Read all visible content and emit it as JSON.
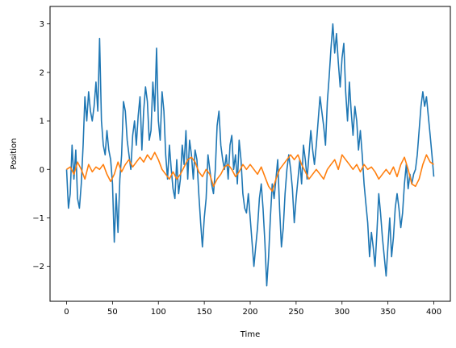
{
  "chart_data": {
    "type": "line",
    "title": "",
    "xlabel": "Time",
    "ylabel": "Position",
    "xlim": [
      -18,
      418
    ],
    "ylim": [
      -2.72,
      3.36
    ],
    "xticks": [
      0,
      50,
      100,
      150,
      200,
      250,
      300,
      350,
      400
    ],
    "yticks": [
      -2,
      -1,
      0,
      1,
      2,
      3
    ],
    "grid": false,
    "legend": "none",
    "series": [
      {
        "color": "#1f77b4",
        "points": [
          [
            0,
            0.0
          ],
          [
            2,
            -0.8
          ],
          [
            4,
            -0.5
          ],
          [
            6,
            0.5
          ],
          [
            8,
            -0.2
          ],
          [
            10,
            0.4
          ],
          [
            12,
            -0.6
          ],
          [
            14,
            -0.8
          ],
          [
            16,
            -0.3
          ],
          [
            18,
            0.5
          ],
          [
            20,
            1.5
          ],
          [
            22,
            1.0
          ],
          [
            24,
            1.6
          ],
          [
            26,
            1.2
          ],
          [
            28,
            1.0
          ],
          [
            30,
            1.3
          ],
          [
            32,
            1.8
          ],
          [
            34,
            1.2
          ],
          [
            36,
            2.7
          ],
          [
            38,
            1.0
          ],
          [
            40,
            0.5
          ],
          [
            42,
            0.3
          ],
          [
            44,
            0.8
          ],
          [
            46,
            0.4
          ],
          [
            48,
            0.2
          ],
          [
            50,
            -0.3
          ],
          [
            52,
            -1.5
          ],
          [
            54,
            -0.5
          ],
          [
            56,
            -1.3
          ],
          [
            58,
            -0.2
          ],
          [
            60,
            0.3
          ],
          [
            62,
            1.4
          ],
          [
            64,
            1.2
          ],
          [
            66,
            0.6
          ],
          [
            68,
            0.3
          ],
          [
            70,
            0.0
          ],
          [
            72,
            0.7
          ],
          [
            74,
            1.0
          ],
          [
            76,
            0.5
          ],
          [
            78,
            1.1
          ],
          [
            80,
            1.5
          ],
          [
            82,
            0.4
          ],
          [
            84,
            1.2
          ],
          [
            86,
            1.7
          ],
          [
            88,
            1.4
          ],
          [
            90,
            0.6
          ],
          [
            92,
            0.8
          ],
          [
            94,
            1.8
          ],
          [
            96,
            1.2
          ],
          [
            98,
            2.5
          ],
          [
            100,
            1.0
          ],
          [
            102,
            0.6
          ],
          [
            104,
            1.6
          ],
          [
            106,
            1.2
          ],
          [
            108,
            0.3
          ],
          [
            110,
            -0.2
          ],
          [
            112,
            0.5
          ],
          [
            114,
            0.0
          ],
          [
            116,
            -0.4
          ],
          [
            118,
            -0.6
          ],
          [
            120,
            0.2
          ],
          [
            122,
            -0.5
          ],
          [
            124,
            -0.2
          ],
          [
            126,
            0.5
          ],
          [
            128,
            0.1
          ],
          [
            130,
            0.8
          ],
          [
            132,
            -0.2
          ],
          [
            134,
            0.6
          ],
          [
            136,
            0.3
          ],
          [
            138,
            -0.2
          ],
          [
            140,
            0.4
          ],
          [
            142,
            0.2
          ],
          [
            144,
            -0.5
          ],
          [
            146,
            -1.1
          ],
          [
            148,
            -1.6
          ],
          [
            150,
            -1.0
          ],
          [
            152,
            -0.6
          ],
          [
            154,
            0.3
          ],
          [
            156,
            0.0
          ],
          [
            158,
            -0.3
          ],
          [
            160,
            -0.5
          ],
          [
            162,
            0.0
          ],
          [
            164,
            0.9
          ],
          [
            166,
            1.2
          ],
          [
            168,
            0.5
          ],
          [
            170,
            0.2
          ],
          [
            172,
            0.0
          ],
          [
            174,
            0.3
          ],
          [
            176,
            -0.2
          ],
          [
            178,
            0.5
          ],
          [
            180,
            0.7
          ],
          [
            182,
            0.0
          ],
          [
            184,
            0.3
          ],
          [
            186,
            -0.3
          ],
          [
            188,
            0.6
          ],
          [
            190,
            0.2
          ],
          [
            192,
            -0.5
          ],
          [
            194,
            -0.8
          ],
          [
            196,
            -0.9
          ],
          [
            198,
            -0.5
          ],
          [
            200,
            -1.0
          ],
          [
            202,
            -1.5
          ],
          [
            204,
            -2.0
          ],
          [
            206,
            -1.6
          ],
          [
            208,
            -1.2
          ],
          [
            210,
            -0.6
          ],
          [
            212,
            -0.3
          ],
          [
            214,
            -0.8
          ],
          [
            216,
            -1.5
          ],
          [
            218,
            -2.4
          ],
          [
            220,
            -1.8
          ],
          [
            222,
            -1.0
          ],
          [
            224,
            -0.3
          ],
          [
            226,
            -0.6
          ],
          [
            228,
            -0.2
          ],
          [
            230,
            0.2
          ],
          [
            232,
            -0.8
          ],
          [
            234,
            -1.6
          ],
          [
            236,
            -1.2
          ],
          [
            238,
            -0.5
          ],
          [
            240,
            0.0
          ],
          [
            242,
            0.3
          ],
          [
            244,
            0.0
          ],
          [
            246,
            -0.4
          ],
          [
            248,
            -1.1
          ],
          [
            250,
            -0.6
          ],
          [
            252,
            -0.2
          ],
          [
            254,
            0.2
          ],
          [
            256,
            -0.3
          ],
          [
            258,
            0.5
          ],
          [
            260,
            0.2
          ],
          [
            262,
            -0.2
          ],
          [
            264,
            0.3
          ],
          [
            266,
            0.8
          ],
          [
            268,
            0.4
          ],
          [
            270,
            0.1
          ],
          [
            272,
            0.5
          ],
          [
            274,
            1.0
          ],
          [
            276,
            1.5
          ],
          [
            278,
            1.2
          ],
          [
            280,
            0.9
          ],
          [
            282,
            0.5
          ],
          [
            284,
            1.4
          ],
          [
            286,
            1.9
          ],
          [
            288,
            2.5
          ],
          [
            290,
            3.0
          ],
          [
            292,
            2.4
          ],
          [
            294,
            2.8
          ],
          [
            296,
            2.2
          ],
          [
            298,
            1.7
          ],
          [
            300,
            2.3
          ],
          [
            302,
            2.6
          ],
          [
            304,
            1.6
          ],
          [
            306,
            1.0
          ],
          [
            308,
            1.8
          ],
          [
            310,
            1.2
          ],
          [
            312,
            0.7
          ],
          [
            314,
            1.3
          ],
          [
            316,
            1.0
          ],
          [
            318,
            0.4
          ],
          [
            320,
            0.8
          ],
          [
            322,
            0.3
          ],
          [
            324,
            -0.3
          ],
          [
            326,
            -0.7
          ],
          [
            328,
            -1.1
          ],
          [
            330,
            -1.8
          ],
          [
            332,
            -1.3
          ],
          [
            334,
            -1.6
          ],
          [
            336,
            -2.0
          ],
          [
            338,
            -1.3
          ],
          [
            340,
            -0.5
          ],
          [
            342,
            -0.9
          ],
          [
            344,
            -1.4
          ],
          [
            346,
            -1.8
          ],
          [
            348,
            -2.2
          ],
          [
            350,
            -1.6
          ],
          [
            352,
            -1.0
          ],
          [
            354,
            -1.8
          ],
          [
            356,
            -1.4
          ],
          [
            358,
            -0.8
          ],
          [
            360,
            -0.5
          ],
          [
            362,
            -0.8
          ],
          [
            364,
            -1.2
          ],
          [
            366,
            -0.9
          ],
          [
            368,
            -0.3
          ],
          [
            370,
            0.1
          ],
          [
            372,
            -0.4
          ],
          [
            374,
            -0.1
          ],
          [
            376,
            -0.3
          ],
          [
            378,
            -0.1
          ],
          [
            380,
            0.0
          ],
          [
            382,
            0.3
          ],
          [
            384,
            0.8
          ],
          [
            386,
            1.3
          ],
          [
            388,
            1.6
          ],
          [
            390,
            1.3
          ],
          [
            392,
            1.5
          ],
          [
            394,
            1.1
          ],
          [
            396,
            0.7
          ],
          [
            398,
            0.3
          ],
          [
            400,
            -0.15
          ]
        ]
      },
      {
        "color": "#ff7f0e",
        "points": [
          [
            0,
            0.0
          ],
          [
            4,
            0.05
          ],
          [
            8,
            -0.1
          ],
          [
            12,
            0.15
          ],
          [
            16,
            0.0
          ],
          [
            20,
            -0.2
          ],
          [
            24,
            0.1
          ],
          [
            28,
            -0.05
          ],
          [
            32,
            0.05
          ],
          [
            36,
            0.0
          ],
          [
            40,
            0.1
          ],
          [
            44,
            -0.1
          ],
          [
            48,
            -0.25
          ],
          [
            52,
            -0.1
          ],
          [
            56,
            0.15
          ],
          [
            60,
            -0.05
          ],
          [
            64,
            0.1
          ],
          [
            68,
            0.2
          ],
          [
            72,
            0.05
          ],
          [
            76,
            0.15
          ],
          [
            80,
            0.25
          ],
          [
            84,
            0.15
          ],
          [
            88,
            0.3
          ],
          [
            92,
            0.2
          ],
          [
            96,
            0.35
          ],
          [
            100,
            0.2
          ],
          [
            104,
            0.0
          ],
          [
            108,
            -0.1
          ],
          [
            112,
            -0.2
          ],
          [
            116,
            -0.05
          ],
          [
            120,
            -0.2
          ],
          [
            124,
            -0.1
          ],
          [
            128,
            0.05
          ],
          [
            132,
            0.2
          ],
          [
            136,
            0.25
          ],
          [
            140,
            0.15
          ],
          [
            144,
            -0.05
          ],
          [
            148,
            -0.15
          ],
          [
            152,
            0.0
          ],
          [
            156,
            -0.1
          ],
          [
            160,
            -0.35
          ],
          [
            164,
            -0.2
          ],
          [
            168,
            -0.1
          ],
          [
            172,
            0.05
          ],
          [
            176,
            0.1
          ],
          [
            180,
            0.0
          ],
          [
            184,
            -0.15
          ],
          [
            188,
            -0.05
          ],
          [
            192,
            0.1
          ],
          [
            196,
            0.0
          ],
          [
            200,
            0.1
          ],
          [
            204,
            0.0
          ],
          [
            208,
            -0.1
          ],
          [
            212,
            0.05
          ],
          [
            216,
            -0.15
          ],
          [
            220,
            -0.35
          ],
          [
            224,
            -0.45
          ],
          [
            228,
            -0.2
          ],
          [
            232,
            0.0
          ],
          [
            236,
            0.1
          ],
          [
            240,
            0.2
          ],
          [
            244,
            0.3
          ],
          [
            248,
            0.2
          ],
          [
            252,
            0.3
          ],
          [
            256,
            0.1
          ],
          [
            260,
            -0.05
          ],
          [
            264,
            -0.2
          ],
          [
            268,
            -0.1
          ],
          [
            272,
            0.0
          ],
          [
            276,
            -0.1
          ],
          [
            280,
            -0.2
          ],
          [
            284,
            0.0
          ],
          [
            288,
            0.1
          ],
          [
            292,
            0.2
          ],
          [
            296,
            0.0
          ],
          [
            300,
            0.3
          ],
          [
            304,
            0.2
          ],
          [
            308,
            0.1
          ],
          [
            312,
            0.0
          ],
          [
            316,
            0.1
          ],
          [
            320,
            -0.05
          ],
          [
            324,
            0.1
          ],
          [
            328,
            0.0
          ],
          [
            332,
            0.05
          ],
          [
            336,
            -0.05
          ],
          [
            340,
            -0.2
          ],
          [
            344,
            -0.1
          ],
          [
            348,
            0.0
          ],
          [
            352,
            -0.1
          ],
          [
            356,
            0.05
          ],
          [
            360,
            -0.15
          ],
          [
            364,
            0.1
          ],
          [
            368,
            0.25
          ],
          [
            372,
            0.0
          ],
          [
            376,
            -0.3
          ],
          [
            380,
            -0.35
          ],
          [
            384,
            -0.2
          ],
          [
            388,
            0.1
          ],
          [
            392,
            0.3
          ],
          [
            396,
            0.15
          ],
          [
            400,
            0.1
          ]
        ]
      }
    ]
  }
}
